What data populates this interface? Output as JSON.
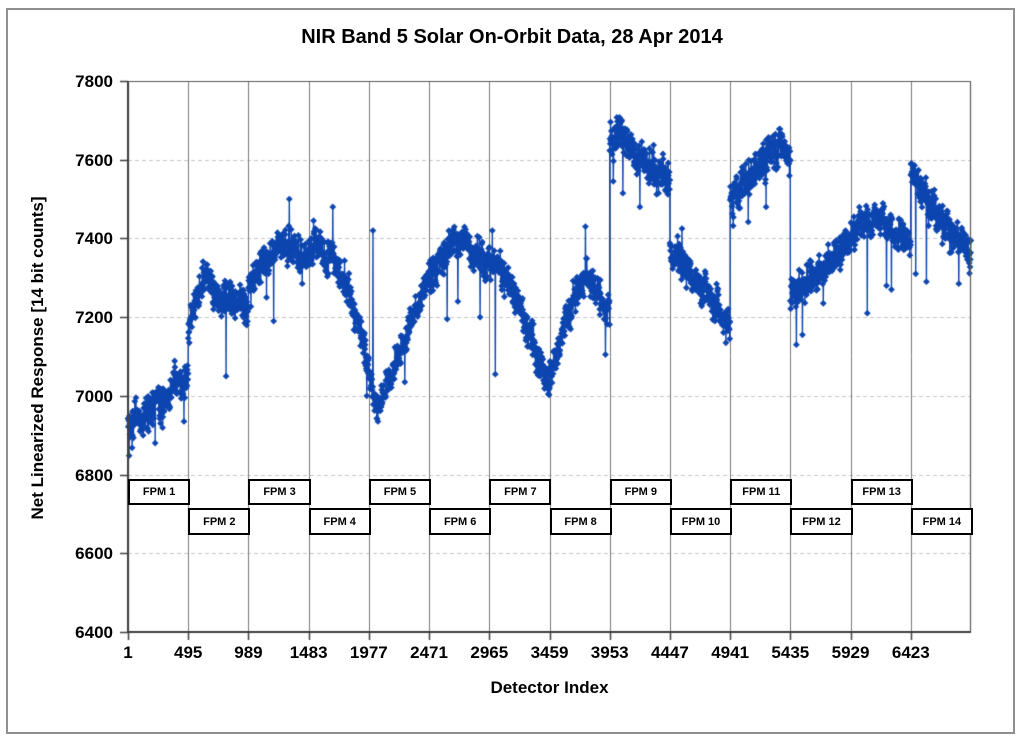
{
  "chart_data": {
    "type": "scatter",
    "title": "NIR Band 5 Solar On-Orbit Data, 28 Apr 2014",
    "xlabel": "Detector Index",
    "ylabel": "Net Linearized Response [14 bit counts]",
    "xlim": [
      1,
      6917
    ],
    "ylim": [
      6400,
      7800
    ],
    "x_tick_values": [
      1,
      495,
      989,
      1483,
      1977,
      2471,
      2965,
      3459,
      3953,
      4447,
      4941,
      5435,
      5929,
      6423
    ],
    "x_tick_labels": [
      "1",
      "495",
      "989",
      "1483",
      "1977",
      "2471",
      "2965",
      "3459",
      "3953",
      "4447",
      "4941",
      "5435",
      "5929",
      "6423"
    ],
    "y_tick_values": [
      6400,
      6600,
      6800,
      7000,
      7200,
      7400,
      7600,
      7800
    ],
    "y_tick_labels": [
      "6400",
      "6600",
      "6800",
      "7000",
      "7200",
      "7400",
      "7600",
      "7800"
    ],
    "grid": {
      "vertical_color": "#7a7a7a",
      "horizontal_color": "#c6c6c6",
      "border_color": "#5a5a5a",
      "axis_color": "#3f3f3f"
    },
    "marker": "diamond",
    "marker_color": "#0E46B0",
    "line_color": "#0E46B0",
    "points_per_fpm": 494,
    "legend": "none",
    "fpms": [
      {
        "label": "FPM 1",
        "row": "upper",
        "start_detector": 1,
        "end_detector": 494,
        "noise_sigma": 22,
        "trend": [
          [
            0,
            6925
          ],
          [
            0.3,
            6955
          ],
          [
            0.6,
            6990
          ],
          [
            0.85,
            7030
          ],
          [
            1,
            7045
          ]
        ],
        "outliers": [
          [
            0.02,
            6848
          ],
          [
            0.07,
            6868
          ],
          [
            0.45,
            6880
          ],
          [
            0.93,
            6935
          ]
        ]
      },
      {
        "label": "FPM 2",
        "row": "lower",
        "start_detector": 495,
        "end_detector": 988,
        "noise_sigma": 20,
        "trend": [
          [
            0,
            7170
          ],
          [
            0.15,
            7260
          ],
          [
            0.3,
            7300
          ],
          [
            0.45,
            7260
          ],
          [
            0.6,
            7230
          ],
          [
            0.75,
            7255
          ],
          [
            1,
            7215
          ]
        ],
        "outliers": [
          [
            0.63,
            7050
          ],
          [
            0.02,
            7135
          ]
        ]
      },
      {
        "label": "FPM 3",
        "row": "upper",
        "start_detector": 989,
        "end_detector": 1482,
        "noise_sigma": 21,
        "trend": [
          [
            0,
            7280
          ],
          [
            0.2,
            7330
          ],
          [
            0.45,
            7370
          ],
          [
            0.62,
            7390
          ],
          [
            0.8,
            7365
          ],
          [
            1,
            7345
          ]
        ],
        "outliers": [
          [
            0.68,
            7500
          ],
          [
            0.42,
            7190
          ],
          [
            0.3,
            7250
          ]
        ]
      },
      {
        "label": "FPM 4",
        "row": "lower",
        "start_detector": 1483,
        "end_detector": 1976,
        "noise_sigma": 21,
        "trend": [
          [
            0,
            7365
          ],
          [
            0.12,
            7390
          ],
          [
            0.3,
            7340
          ],
          [
            0.42,
            7360
          ],
          [
            0.55,
            7300
          ],
          [
            0.7,
            7250
          ],
          [
            0.85,
            7170
          ],
          [
            1,
            7075
          ]
        ],
        "outliers": [
          [
            0.4,
            7480
          ],
          [
            0.08,
            7445
          ],
          [
            0.97,
            7000
          ]
        ]
      },
      {
        "label": "FPM 5",
        "row": "upper",
        "start_detector": 1977,
        "end_detector": 2470,
        "noise_sigma": 19,
        "trend": [
          [
            0,
            7050
          ],
          [
            0.08,
            6995
          ],
          [
            0.18,
            6975
          ],
          [
            0.35,
            7040
          ],
          [
            0.5,
            7105
          ],
          [
            0.65,
            7165
          ],
          [
            0.82,
            7235
          ],
          [
            1,
            7295
          ]
        ],
        "outliers": [
          [
            0.07,
            7420
          ],
          [
            0.15,
            6935
          ],
          [
            0.6,
            7035
          ]
        ]
      },
      {
        "label": "FPM 6",
        "row": "lower",
        "start_detector": 2471,
        "end_detector": 2964,
        "noise_sigma": 20,
        "trend": [
          [
            0,
            7300
          ],
          [
            0.35,
            7380
          ],
          [
            0.55,
            7395
          ],
          [
            0.8,
            7360
          ],
          [
            1,
            7335
          ]
        ],
        "outliers": [
          [
            0.3,
            7195
          ],
          [
            0.48,
            7240
          ],
          [
            0.85,
            7200
          ]
        ]
      },
      {
        "label": "FPM 7",
        "row": "upper",
        "start_detector": 2965,
        "end_detector": 3458,
        "noise_sigma": 20,
        "trend": [
          [
            0,
            7340
          ],
          [
            0.15,
            7330
          ],
          [
            0.3,
            7290
          ],
          [
            0.5,
            7230
          ],
          [
            0.7,
            7140
          ],
          [
            0.9,
            7060
          ],
          [
            1,
            7028
          ]
        ],
        "outliers": [
          [
            0.1,
            7055
          ],
          [
            0.05,
            7420
          ]
        ]
      },
      {
        "label": "FPM 8",
        "row": "lower",
        "start_detector": 3459,
        "end_detector": 3952,
        "noise_sigma": 20,
        "trend": [
          [
            0,
            7045
          ],
          [
            0.2,
            7145
          ],
          [
            0.45,
            7265
          ],
          [
            0.6,
            7305
          ],
          [
            0.8,
            7260
          ],
          [
            1,
            7200
          ]
        ],
        "outliers": [
          [
            0.6,
            7430
          ],
          [
            0.93,
            7105
          ]
        ]
      },
      {
        "label": "FPM 9",
        "row": "upper",
        "start_detector": 3953,
        "end_detector": 4446,
        "noise_sigma": 23,
        "trend": [
          [
            0,
            7650
          ],
          [
            0.12,
            7668
          ],
          [
            0.3,
            7640
          ],
          [
            0.5,
            7605
          ],
          [
            0.7,
            7580
          ],
          [
            1,
            7555
          ]
        ],
        "outliers": [
          [
            0.06,
            7545
          ],
          [
            0.22,
            7515
          ],
          [
            0.5,
            7480
          ]
        ]
      },
      {
        "label": "FPM 10",
        "row": "lower",
        "start_detector": 4447,
        "end_detector": 4940,
        "noise_sigma": 19,
        "trend": [
          [
            0,
            7370
          ],
          [
            0.25,
            7330
          ],
          [
            0.5,
            7280
          ],
          [
            0.75,
            7230
          ],
          [
            1,
            7182
          ]
        ],
        "outliers": [
          [
            0.93,
            7135
          ],
          [
            0.2,
            7425
          ]
        ]
      },
      {
        "label": "FPM 11",
        "row": "upper",
        "start_detector": 4941,
        "end_detector": 5434,
        "noise_sigma": 24,
        "trend": [
          [
            0,
            7500
          ],
          [
            0.25,
            7548
          ],
          [
            0.5,
            7588
          ],
          [
            0.72,
            7628
          ],
          [
            0.88,
            7632
          ],
          [
            1,
            7600
          ]
        ],
        "outliers": [
          [
            0.05,
            7432
          ],
          [
            0.3,
            7442
          ],
          [
            0.6,
            7480
          ]
        ]
      },
      {
        "label": "FPM 12",
        "row": "lower",
        "start_detector": 5435,
        "end_detector": 5928,
        "noise_sigma": 20,
        "trend": [
          [
            0,
            7255
          ],
          [
            0.3,
            7295
          ],
          [
            0.6,
            7330
          ],
          [
            0.85,
            7375
          ],
          [
            1,
            7395
          ]
        ],
        "outliers": [
          [
            0.1,
            7130
          ],
          [
            0.2,
            7155
          ],
          [
            0.55,
            7235
          ]
        ]
      },
      {
        "label": "FPM 13",
        "row": "upper",
        "start_detector": 5929,
        "end_detector": 6422,
        "noise_sigma": 19,
        "trend": [
          [
            0,
            7400
          ],
          [
            0.25,
            7445
          ],
          [
            0.45,
            7455
          ],
          [
            0.7,
            7420
          ],
          [
            1,
            7390
          ]
        ],
        "outliers": [
          [
            0.28,
            7210
          ],
          [
            0.6,
            7280
          ],
          [
            0.68,
            7270
          ]
        ]
      },
      {
        "label": "FPM 14",
        "row": "lower",
        "start_detector": 6423,
        "end_detector": 6916,
        "noise_sigma": 20,
        "trend": [
          [
            0,
            7575
          ],
          [
            0.1,
            7550
          ],
          [
            0.25,
            7500
          ],
          [
            0.45,
            7455
          ],
          [
            0.65,
            7420
          ],
          [
            0.85,
            7390
          ],
          [
            1,
            7350
          ]
        ],
        "outliers": [
          [
            0.08,
            7310
          ],
          [
            0.26,
            7290
          ],
          [
            0.8,
            7285
          ]
        ]
      }
    ]
  }
}
